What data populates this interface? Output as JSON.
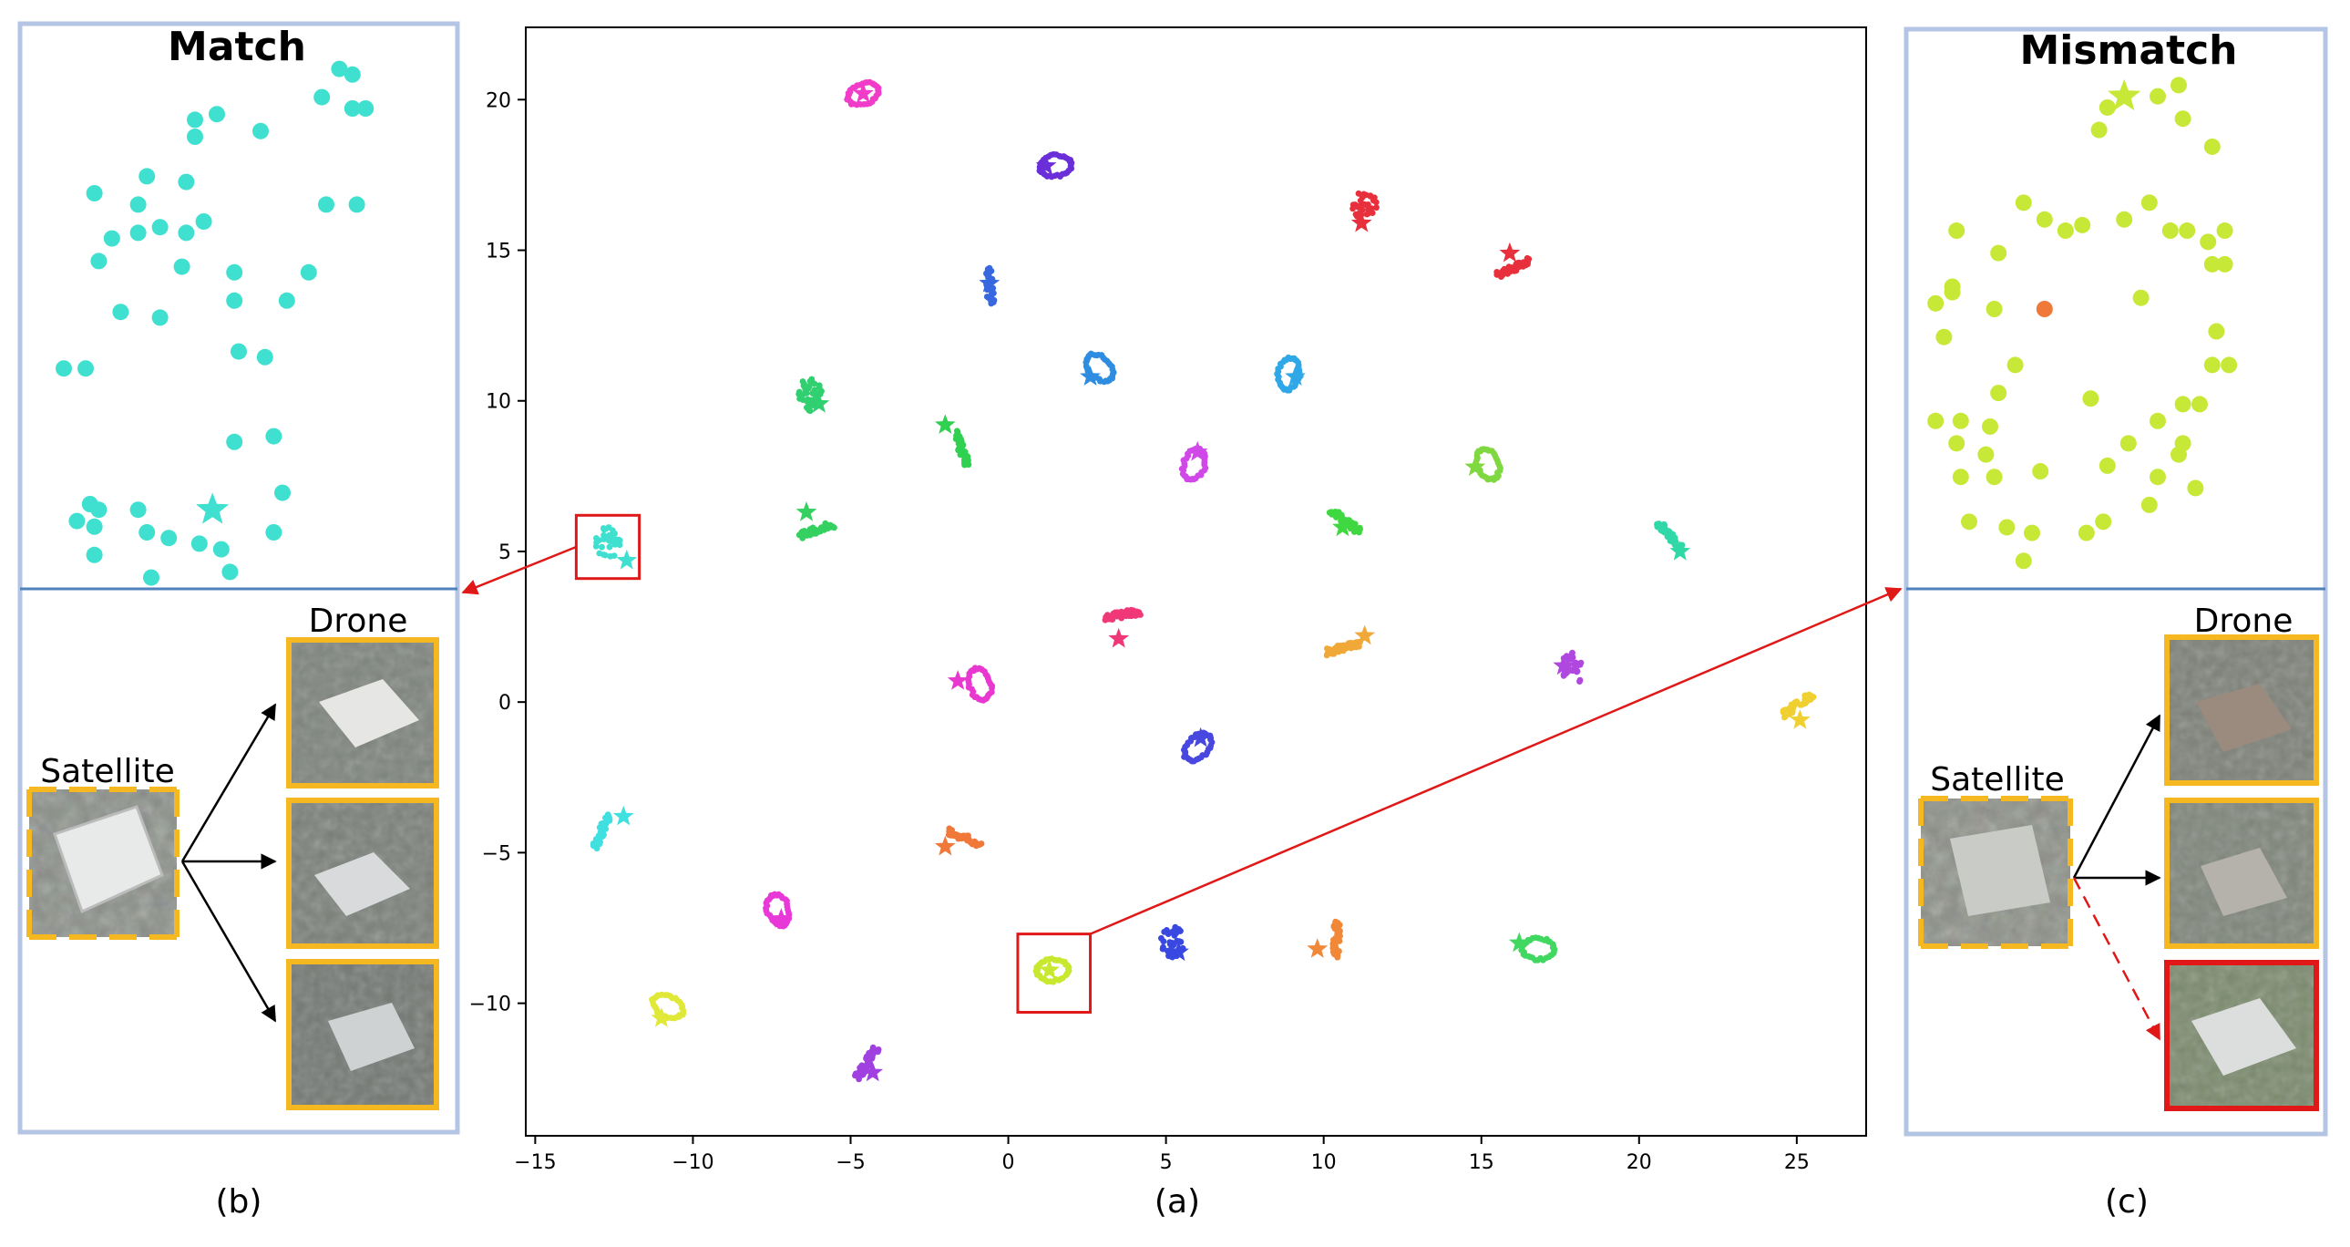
{
  "chart_data": [
    {
      "panel": "(a)",
      "type": "scatter",
      "title": "",
      "xlabel": "",
      "ylabel": "",
      "xlim": [
        -15.3,
        27.2
      ],
      "ylim": [
        -14.4,
        22.4
      ],
      "xticks": [
        -15,
        -10,
        -5,
        0,
        5,
        10,
        15,
        20,
        25
      ],
      "yticks": [
        -10,
        -5,
        0,
        5,
        10,
        15,
        20
      ],
      "grid": false,
      "legend": "none",
      "marker_note": "each cluster = one location; star marks the satellite-view embedding, dots mark drone-view embeddings",
      "clusters": [
        {
          "x": -4.6,
          "y": 20.2,
          "color": "#f03cc8",
          "shape": "ring",
          "star": [
            -4.6,
            20.2
          ]
        },
        {
          "x": 1.5,
          "y": 17.8,
          "color": "#6a2fd8",
          "shape": "ring",
          "star": [
            1.2,
            17.8
          ]
        },
        {
          "x": 11.3,
          "y": 16.5,
          "color": "#e8303c",
          "shape": "blob",
          "star": [
            11.2,
            15.9
          ]
        },
        {
          "x": 16.0,
          "y": 14.4,
          "color": "#e8303c",
          "shape": "line",
          "star": [
            15.9,
            14.9
          ]
        },
        {
          "x": -0.6,
          "y": 13.8,
          "color": "#3868e0",
          "shape": "line",
          "star": [
            -0.6,
            13.9
          ]
        },
        {
          "x": 2.9,
          "y": 11.1,
          "color": "#2e8de0",
          "shape": "ring",
          "star": [
            2.6,
            10.8
          ]
        },
        {
          "x": 8.9,
          "y": 10.9,
          "color": "#30a8e8",
          "shape": "ring",
          "star": [
            9.1,
            10.8
          ]
        },
        {
          "x": -6.3,
          "y": 10.2,
          "color": "#30d070",
          "shape": "blob",
          "star": [
            -6.0,
            9.9
          ]
        },
        {
          "x": -1.5,
          "y": 8.4,
          "color": "#30d050",
          "shape": "line",
          "star": [
            -2.0,
            9.2
          ]
        },
        {
          "x": 5.9,
          "y": 7.9,
          "color": "#d048e8",
          "shape": "ring",
          "star": [
            6.0,
            8.3
          ]
        },
        {
          "x": 15.2,
          "y": 7.9,
          "color": "#80d840",
          "shape": "ring",
          "star": [
            14.8,
            7.8
          ]
        },
        {
          "x": -6.1,
          "y": 5.7,
          "color": "#34d060",
          "shape": "line",
          "star": [
            -6.4,
            6.3
          ]
        },
        {
          "x": 10.7,
          "y": 6.0,
          "color": "#40d840",
          "shape": "line",
          "star": [
            10.6,
            5.8
          ]
        },
        {
          "x": 21.0,
          "y": 5.5,
          "color": "#30d8a8",
          "shape": "line",
          "star": [
            21.3,
            5.0
          ]
        },
        {
          "x": -12.7,
          "y": 5.3,
          "color": "#40e0d0",
          "shape": "blob",
          "star": [
            -12.1,
            4.7
          ]
        },
        {
          "x": 3.6,
          "y": 2.9,
          "color": "#f03878",
          "shape": "line",
          "star": [
            3.5,
            2.1
          ]
        },
        {
          "x": 10.6,
          "y": 1.8,
          "color": "#f0a838",
          "shape": "line",
          "star": [
            11.3,
            2.2
          ]
        },
        {
          "x": 17.9,
          "y": 1.1,
          "color": "#b048e0",
          "shape": "blob",
          "star": [
            17.6,
            1.2
          ]
        },
        {
          "x": -0.9,
          "y": 0.6,
          "color": "#e838d0",
          "shape": "ring",
          "star": [
            -1.6,
            0.7
          ]
        },
        {
          "x": 25.0,
          "y": -0.1,
          "color": "#f0d030",
          "shape": "line",
          "star": [
            25.1,
            -0.6
          ]
        },
        {
          "x": 6.0,
          "y": -1.5,
          "color": "#4848e0",
          "shape": "ring",
          "star": [
            6.1,
            -1.2
          ]
        },
        {
          "x": -12.9,
          "y": -4.3,
          "color": "#40e0e0",
          "shape": "line",
          "star": [
            -12.2,
            -3.8
          ]
        },
        {
          "x": -1.4,
          "y": -4.5,
          "color": "#f07838",
          "shape": "line",
          "star": [
            -2.0,
            -4.8
          ]
        },
        {
          "x": -7.3,
          "y": -6.9,
          "color": "#e838d8",
          "shape": "ring",
          "star": [
            -7.2,
            -7.2
          ]
        },
        {
          "x": 1.4,
          "y": -8.9,
          "color": "#c8e830",
          "shape": "ring",
          "star": [
            1.3,
            -8.9
          ]
        },
        {
          "x": 5.2,
          "y": -8.0,
          "color": "#3848e0",
          "shape": "blob",
          "star": [
            5.4,
            -8.3
          ]
        },
        {
          "x": 10.4,
          "y": -7.9,
          "color": "#f08838",
          "shape": "line",
          "star": [
            9.8,
            -8.2
          ]
        },
        {
          "x": 16.8,
          "y": -8.2,
          "color": "#40d860",
          "shape": "ring",
          "star": [
            16.2,
            -8.0
          ]
        },
        {
          "x": -10.8,
          "y": -10.1,
          "color": "#e0e838",
          "shape": "ring",
          "star": [
            -11.0,
            -10.5
          ]
        },
        {
          "x": -4.5,
          "y": -12.0,
          "color": "#a040e0",
          "shape": "line",
          "star": [
            -4.3,
            -12.3
          ]
        }
      ],
      "highlight_boxes": [
        {
          "x0": -13.7,
          "x1": -11.7,
          "y0": 4.1,
          "y1": 6.2,
          "target": "(b)"
        },
        {
          "x0": 0.3,
          "x1": 2.6,
          "y0": -10.3,
          "y1": -7.7,
          "target": "(c)"
        }
      ]
    },
    {
      "panel": "(b)",
      "type": "scatter",
      "title": "Match",
      "color": "#40e0d0",
      "star": [
        0.44,
        0.86
      ],
      "points": [
        [
          0.73,
          0.08
        ],
        [
          0.76,
          0.09
        ],
        [
          0.76,
          0.15
        ],
        [
          0.79,
          0.15
        ],
        [
          0.69,
          0.13
        ],
        [
          0.4,
          0.17
        ],
        [
          0.45,
          0.16
        ],
        [
          0.55,
          0.19
        ],
        [
          0.4,
          0.2
        ],
        [
          0.38,
          0.28
        ],
        [
          0.29,
          0.27
        ],
        [
          0.17,
          0.3
        ],
        [
          0.27,
          0.32
        ],
        [
          0.7,
          0.32
        ],
        [
          0.77,
          0.32
        ],
        [
          0.42,
          0.35
        ],
        [
          0.38,
          0.37
        ],
        [
          0.32,
          0.36
        ],
        [
          0.27,
          0.37
        ],
        [
          0.21,
          0.38
        ],
        [
          0.18,
          0.42
        ],
        [
          0.37,
          0.43
        ],
        [
          0.49,
          0.44
        ],
        [
          0.66,
          0.44
        ],
        [
          0.49,
          0.49
        ],
        [
          0.61,
          0.49
        ],
        [
          0.23,
          0.51
        ],
        [
          0.32,
          0.52
        ],
        [
          0.5,
          0.58
        ],
        [
          0.56,
          0.59
        ],
        [
          0.1,
          0.61
        ],
        [
          0.15,
          0.61
        ],
        [
          0.58,
          0.73
        ],
        [
          0.49,
          0.74
        ],
        [
          0.16,
          0.85
        ],
        [
          0.18,
          0.86
        ],
        [
          0.27,
          0.86
        ],
        [
          0.17,
          0.89
        ],
        [
          0.13,
          0.88
        ],
        [
          0.29,
          0.9
        ],
        [
          0.34,
          0.91
        ],
        [
          0.41,
          0.92
        ],
        [
          0.46,
          0.93
        ],
        [
          0.58,
          0.9
        ],
        [
          0.6,
          0.83
        ],
        [
          0.17,
          0.94
        ],
        [
          0.48,
          0.97
        ],
        [
          0.3,
          0.98
        ]
      ],
      "outliers": []
    },
    {
      "panel": "(c)",
      "type": "scatter",
      "title": "Mismatch",
      "color": "#c8e838",
      "outlier_color": "#f07838",
      "star": [
        0.52,
        0.12
      ],
      "points": [
        [
          0.48,
          0.14
        ],
        [
          0.6,
          0.12
        ],
        [
          0.65,
          0.1
        ],
        [
          0.66,
          0.16
        ],
        [
          0.46,
          0.18
        ],
        [
          0.73,
          0.21
        ],
        [
          0.58,
          0.31
        ],
        [
          0.52,
          0.34
        ],
        [
          0.33,
          0.34
        ],
        [
          0.28,
          0.31
        ],
        [
          0.38,
          0.36
        ],
        [
          0.42,
          0.35
        ],
        [
          0.12,
          0.36
        ],
        [
          0.22,
          0.4
        ],
        [
          0.76,
          0.42
        ],
        [
          0.67,
          0.36
        ],
        [
          0.63,
          0.36
        ],
        [
          0.72,
          0.38
        ],
        [
          0.76,
          0.36
        ],
        [
          0.73,
          0.42
        ],
        [
          0.11,
          0.46
        ],
        [
          0.07,
          0.49
        ],
        [
          0.11,
          0.47
        ],
        [
          0.21,
          0.5
        ],
        [
          0.56,
          0.48
        ],
        [
          0.74,
          0.54
        ],
        [
          0.09,
          0.55
        ],
        [
          0.26,
          0.6
        ],
        [
          0.73,
          0.6
        ],
        [
          0.77,
          0.6
        ],
        [
          0.22,
          0.65
        ],
        [
          0.44,
          0.66
        ],
        [
          0.66,
          0.67
        ],
        [
          0.7,
          0.67
        ],
        [
          0.13,
          0.7
        ],
        [
          0.07,
          0.7
        ],
        [
          0.2,
          0.71
        ],
        [
          0.6,
          0.7
        ],
        [
          0.12,
          0.74
        ],
        [
          0.19,
          0.76
        ],
        [
          0.53,
          0.74
        ],
        [
          0.66,
          0.74
        ],
        [
          0.21,
          0.8
        ],
        [
          0.32,
          0.79
        ],
        [
          0.48,
          0.78
        ],
        [
          0.65,
          0.76
        ],
        [
          0.13,
          0.8
        ],
        [
          0.6,
          0.8
        ],
        [
          0.69,
          0.82
        ],
        [
          0.15,
          0.88
        ],
        [
          0.24,
          0.89
        ],
        [
          0.47,
          0.88
        ],
        [
          0.58,
          0.85
        ],
        [
          0.3,
          0.9
        ],
        [
          0.43,
          0.9
        ],
        [
          0.28,
          0.95
        ]
      ],
      "outliers": [
        [
          0.33,
          0.5
        ]
      ]
    }
  ],
  "panels": {
    "b": {
      "title": "Match",
      "satellite_label": "Satellite",
      "drone_label": "Drone",
      "caption": "(b)"
    },
    "a": {
      "caption": "(a)"
    },
    "c": {
      "title": "Mismatch",
      "satellite_label": "Satellite",
      "drone_label": "Drone",
      "caption": "(c)"
    }
  },
  "colors": {
    "panel_border": "#b4c4e4",
    "divider": "#4f81bd",
    "thumb_border": "#f5b820",
    "mismatch_border": "#e01818",
    "arrow_red": "#e01818"
  }
}
